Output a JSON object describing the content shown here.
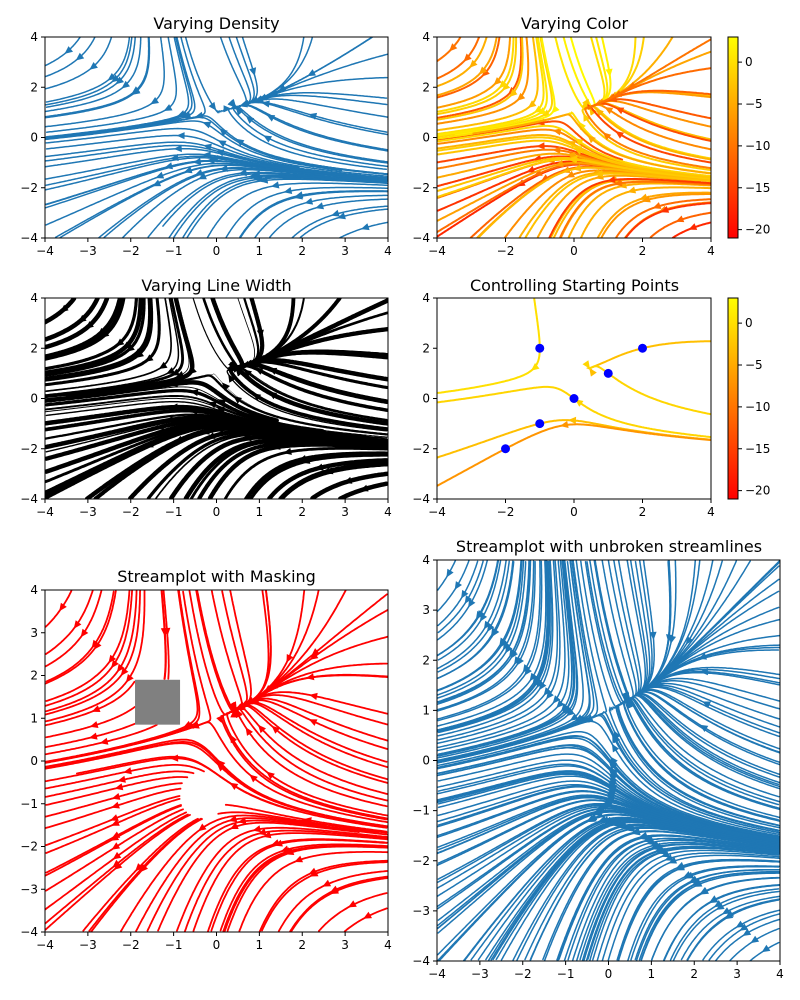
{
  "figure": {
    "rows": [
      [
        "Varying Density",
        "Varying Color"
      ],
      [
        "Varying Line Width",
        "Controlling Starting Points"
      ],
      [
        "Streamplot with Masking",
        "Streamplot with unbroken streamlines"
      ]
    ]
  },
  "chart_data": [
    {
      "type": "streamplot",
      "title": "Varying Density",
      "xlim": [
        -4,
        4
      ],
      "ylim": [
        -4,
        4
      ],
      "xticks": [
        -4,
        -3,
        -2,
        -1,
        0,
        1,
        2,
        3,
        4
      ],
      "yticks": [
        -4,
        -2,
        0,
        2,
        4
      ],
      "field": {
        "U": "-1 - X^2 + Y",
        "V": "1 + X - Y^2"
      },
      "color": "#1f77b4",
      "density": [
        0.5,
        1
      ]
    },
    {
      "type": "streamplot",
      "title": "Varying Color",
      "xlim": [
        -4,
        4
      ],
      "ylim": [
        -4,
        4
      ],
      "xticks": [
        -4,
        -2,
        0,
        2,
        4
      ],
      "yticks": [
        -4,
        -2,
        0,
        2,
        4
      ],
      "field": {
        "U": "-1 - X^2 + Y",
        "V": "1 + X - Y^2"
      },
      "colormap": "autumn",
      "colorbar": {
        "range": [
          -21,
          3
        ],
        "ticks": [
          0,
          -5,
          -10,
          -15,
          -20
        ]
      }
    },
    {
      "type": "streamplot",
      "title": "Varying Line Width",
      "xlim": [
        -4,
        4
      ],
      "ylim": [
        -4,
        4
      ],
      "xticks": [
        -4,
        -3,
        -2,
        -1,
        0,
        1,
        2,
        3,
        4
      ],
      "yticks": [
        -4,
        -2,
        0,
        2,
        4
      ],
      "field": {
        "U": "-1 - X^2 + Y",
        "V": "1 + X - Y^2"
      },
      "color": "#000000",
      "linewidth": "proportional to speed"
    },
    {
      "type": "streamplot",
      "title": "Controlling Starting Points",
      "xlim": [
        -4,
        4
      ],
      "ylim": [
        -4,
        4
      ],
      "xticks": [
        -4,
        -2,
        0,
        2,
        4
      ],
      "yticks": [
        -4,
        -2,
        0,
        2,
        4
      ],
      "field": {
        "U": "-1 - X^2 + Y",
        "V": "1 + X - Y^2"
      },
      "colormap": "autumn",
      "start_points": [
        [
          -1,
          2
        ],
        [
          2,
          2
        ],
        [
          1,
          1
        ],
        [
          0,
          0
        ],
        [
          -1,
          -1
        ],
        [
          -2,
          -2
        ]
      ],
      "start_point_color": "#0000ff",
      "colorbar": {
        "range": [
          -21,
          3
        ],
        "ticks": [
          0,
          -5,
          -10,
          -15,
          -20
        ]
      }
    },
    {
      "type": "streamplot",
      "title": "Streamplot with Masking",
      "xlim": [
        -4,
        4
      ],
      "ylim": [
        -4,
        4
      ],
      "xticks": [
        -4,
        -3,
        -2,
        -1,
        0,
        1,
        2,
        3,
        4
      ],
      "yticks": [
        -4,
        -3,
        -2,
        -1,
        0,
        1,
        2,
        3,
        4
      ],
      "field": {
        "U": "-1 - X^2 + Y",
        "V": "1 + X - Y^2"
      },
      "color": "#ff0000",
      "mask": {
        "x": [
          -1.9,
          -0.85
        ],
        "y": [
          0.85,
          1.9
        ],
        "color": "#808080"
      },
      "void_region": {
        "center": [
          -0.3,
          -0.8
        ],
        "radius": 0.55
      }
    },
    {
      "type": "streamplot",
      "title": "Streamplot with unbroken streamlines",
      "xlim": [
        -4,
        4
      ],
      "ylim": [
        -4,
        4
      ],
      "xticks": [
        -4,
        -3,
        -2,
        -1,
        0,
        1,
        2,
        3,
        4
      ],
      "yticks": [
        -4,
        -3,
        -2,
        -1,
        0,
        1,
        2,
        3,
        4
      ],
      "field": {
        "U": "-1 - X^2 + Y",
        "V": "1 + X - Y^2"
      },
      "color": "#1f77b4",
      "broken_streamlines": false
    }
  ]
}
